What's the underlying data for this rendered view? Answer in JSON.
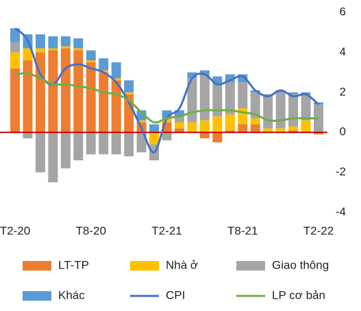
{
  "chart_data": {
    "type": "stacked-bar-line",
    "categories": [
      "T2-20",
      null,
      null,
      null,
      null,
      null,
      "T8-20",
      null,
      null,
      null,
      null,
      null,
      "T2-21",
      null,
      null,
      null,
      null,
      null,
      "T8-21",
      null,
      null,
      null,
      null,
      null,
      "T2-22"
    ],
    "series": [
      {
        "name": "LT-TP",
        "color": "#ed7d31",
        "kind": "bar",
        "values": [
          3.2,
          3.6,
          4.0,
          4.1,
          4.2,
          4.1,
          3.5,
          3.0,
          2.6,
          1.9,
          0.5,
          0.0,
          0.5,
          0.2,
          0.0,
          -0.3,
          -0.5,
          0.1,
          0.4,
          0.4,
          0.0,
          0.0,
          0.1,
          0.0,
          -0.1
        ]
      },
      {
        "name": "Nhà ở",
        "color": "#ffc000",
        "kind": "bar",
        "values": [
          0.8,
          0.6,
          0.2,
          0.1,
          0.1,
          0.1,
          0.1,
          0.1,
          0.1,
          0.1,
          0.1,
          -0.6,
          0.2,
          0.3,
          0.5,
          0.6,
          0.8,
          0.8,
          0.8,
          0.3,
          0.2,
          0.2,
          0.2,
          0.6,
          0.0
        ]
      },
      {
        "name": "Giao thông",
        "color": "#a5a5a5",
        "kind": "bar",
        "values": [
          0.5,
          -0.3,
          -2.0,
          -2.5,
          -1.8,
          -1.4,
          -1.1,
          -1.1,
          -1.1,
          -1.2,
          -1.0,
          -0.8,
          -0.4,
          0.3,
          2.2,
          2.3,
          1.6,
          1.6,
          1.3,
          1.3,
          1.6,
          1.8,
          1.6,
          1.3,
          1.4
        ]
      },
      {
        "name": "Khác",
        "color": "#5b9bd5",
        "kind": "bar",
        "values": [
          0.7,
          0.7,
          0.7,
          0.6,
          0.5,
          0.5,
          0.5,
          0.6,
          0.8,
          0.6,
          0.5,
          0.4,
          0.4,
          0.3,
          0.3,
          0.2,
          0.4,
          0.4,
          0.4,
          0.1,
          0.1,
          0.1,
          0.1,
          0.1,
          0.1
        ]
      },
      {
        "name": "CPI",
        "color": "#4472c4",
        "kind": "line",
        "values": [
          5.2,
          4.6,
          2.9,
          2.4,
          3.2,
          3.4,
          3.2,
          3.0,
          2.5,
          1.5,
          0.2,
          -1.0,
          0.7,
          1.2,
          2.7,
          2.9,
          2.4,
          2.6,
          2.8,
          2.1,
          1.8,
          2.1,
          1.8,
          1.9,
          1.4
        ]
      },
      {
        "name": "LP cơ bản",
        "color": "#70ad47",
        "kind": "line",
        "values": [
          2.9,
          2.95,
          2.7,
          2.4,
          2.4,
          2.3,
          2.2,
          2.0,
          1.9,
          1.6,
          1.0,
          0.5,
          0.7,
          0.8,
          1.0,
          1.1,
          1.1,
          1.1,
          1.0,
          0.9,
          0.6,
          0.6,
          0.7,
          0.7,
          0.7
        ]
      }
    ],
    "ylim": [
      -4,
      6
    ],
    "yticks": [
      -4,
      -2,
      0,
      2,
      4,
      6
    ],
    "zero_line_color": "#c00000"
  }
}
